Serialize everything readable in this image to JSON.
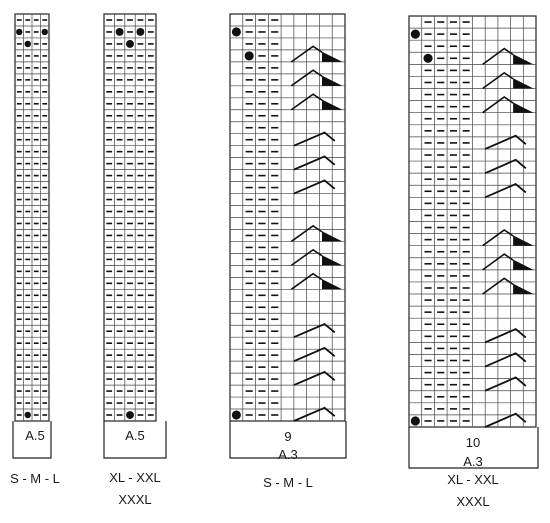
{
  "charts": [
    {
      "id": "a5-small",
      "pattern": "A.5",
      "size_label": [
        "S - M - L"
      ],
      "stitch_count": "",
      "cols": 4,
      "rows": 34,
      "dots": [
        [
          1,
          0
        ],
        [
          1,
          3
        ],
        [
          2,
          1
        ],
        [
          33,
          1
        ]
      ],
      "purl_cols": [
        1,
        2,
        3
      ],
      "shapes": []
    },
    {
      "id": "a5-large",
      "pattern": "A.5",
      "size_label": [
        "XL - XXL",
        "XXXL"
      ],
      "stitch_count": "",
      "cols": 5,
      "rows": 34,
      "dots": [
        [
          1,
          1
        ],
        [
          1,
          3
        ],
        [
          2,
          2
        ],
        [
          33,
          2
        ]
      ],
      "purl_cols": [
        1,
        2,
        3,
        4
      ],
      "shapes": []
    },
    {
      "id": "a3-small",
      "pattern": "A.3",
      "size_label": [
        "S - M - L"
      ],
      "stitch_count": "9",
      "cols": 9,
      "rows": 34,
      "dots": [
        [
          1,
          0
        ],
        [
          3,
          1
        ],
        [
          33,
          0
        ]
      ],
      "purl_cols": [
        1,
        2,
        3
      ],
      "shapes": [
        {
          "type": "dec",
          "row": 3
        },
        {
          "type": "dec",
          "row": 5
        },
        {
          "type": "dec",
          "row": 7
        },
        {
          "type": "inc",
          "row": 10
        },
        {
          "type": "inc",
          "row": 12
        },
        {
          "type": "inc",
          "row": 14
        },
        {
          "type": "dec",
          "row": 18
        },
        {
          "type": "dec",
          "row": 20
        },
        {
          "type": "dec",
          "row": 22
        },
        {
          "type": "inc",
          "row": 26
        },
        {
          "type": "inc",
          "row": 28
        },
        {
          "type": "inc",
          "row": 30
        },
        {
          "type": "inc",
          "row": 33
        }
      ]
    },
    {
      "id": "a3-large",
      "pattern": "A.3",
      "size_label": [
        "XL - XXL",
        "XXXL"
      ],
      "stitch_count": "10",
      "cols": 10,
      "rows": 34,
      "dots": [
        [
          1,
          0
        ],
        [
          3,
          1
        ],
        [
          33,
          0
        ]
      ],
      "purl_cols": [
        1,
        2,
        3,
        4
      ],
      "shapes": [
        {
          "type": "dec",
          "row": 3
        },
        {
          "type": "dec",
          "row": 5
        },
        {
          "type": "dec",
          "row": 7
        },
        {
          "type": "inc",
          "row": 10
        },
        {
          "type": "inc",
          "row": 12
        },
        {
          "type": "inc",
          "row": 14
        },
        {
          "type": "dec",
          "row": 18
        },
        {
          "type": "dec",
          "row": 20
        },
        {
          "type": "dec",
          "row": 22
        },
        {
          "type": "inc",
          "row": 26
        },
        {
          "type": "inc",
          "row": 28
        },
        {
          "type": "inc",
          "row": 30
        },
        {
          "type": "inc",
          "row": 33
        }
      ]
    }
  ]
}
